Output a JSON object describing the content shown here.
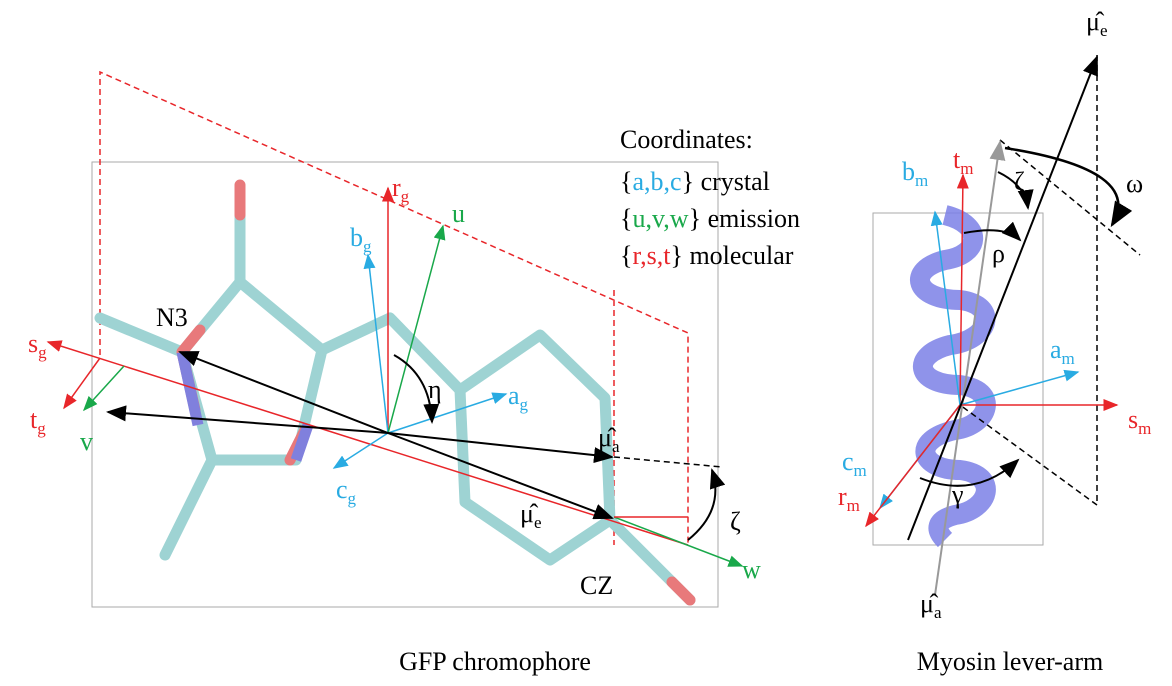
{
  "panels": [
    {
      "caption": "GFP chromophore",
      "labels": [
        {
          "text": "r",
          "sub": "g"
        },
        {
          "text": "u"
        },
        {
          "text": "b",
          "sub": "g"
        },
        {
          "text": "s",
          "sub": "g"
        },
        {
          "text": "t",
          "sub": "g"
        },
        {
          "text": "v"
        },
        {
          "text": "N3"
        },
        {
          "text": "η"
        },
        {
          "text": "a",
          "sub": "g"
        },
        {
          "text": "c",
          "sub": "g"
        },
        {
          "text": "μ̂",
          "sub": "a"
        },
        {
          "text": "μ̂",
          "sub": "e"
        },
        {
          "text": "CZ"
        },
        {
          "text": "ζ"
        },
        {
          "text": "w"
        }
      ]
    },
    {
      "caption": "Myosin lever-arm",
      "labels": [
        {
          "text": "μ̂",
          "sub": "e"
        },
        {
          "text": "t",
          "sub": "m"
        },
        {
          "text": "b",
          "sub": "m"
        },
        {
          "text": "ζ"
        },
        {
          "text": "ω"
        },
        {
          "text": "ρ"
        },
        {
          "text": "a",
          "sub": "m"
        },
        {
          "text": "s",
          "sub": "m"
        },
        {
          "text": "c",
          "sub": "m"
        },
        {
          "text": "r",
          "sub": "m"
        },
        {
          "text": "γ"
        },
        {
          "text": "μ̂",
          "sub": "a"
        }
      ]
    }
  ],
  "legend": {
    "title": "Coordinates:",
    "rows": [
      {
        "open": "{",
        "letters": "a,b,c",
        "close": "}",
        "word": " crystal"
      },
      {
        "open": "{",
        "letters": "u,v,w",
        "close": "}",
        "word": " emission"
      },
      {
        "open": "{",
        "letters": "r,s,t",
        "close": "}",
        "word": " molecular"
      }
    ]
  }
}
